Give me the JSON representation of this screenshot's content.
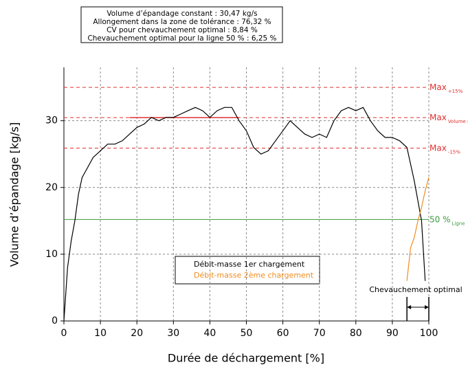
{
  "chart_data": {
    "type": "line",
    "info": [
      "Volume d’épandage constant : 30,47 kg/s",
      "Allongement dans la zone de tolérance : 76,32 %",
      "CV pour chevauchement optimal : 8,84 %",
      "Chevauchement optimal pour la ligne 50 % :  6,25 %"
    ],
    "x_label": "Durée de déchargement [%]",
    "y_label": "Volume d’épandage [kg/s]",
    "xlim": [
      0,
      100
    ],
    "ylim": [
      0,
      38
    ],
    "xticks": [
      0,
      10,
      20,
      30,
      40,
      50,
      60,
      70,
      80,
      90,
      100
    ],
    "yticks": [
      0,
      10,
      20,
      30
    ],
    "grid": true,
    "series": [
      {
        "name": "Débit-masse 1er chargement",
        "color": "#000000",
        "x": [
          0,
          1,
          2,
          3,
          4,
          5,
          6,
          8,
          10,
          12,
          14,
          16,
          18,
          20,
          22,
          24,
          26,
          28,
          30,
          32,
          34,
          36,
          38,
          40,
          42,
          44,
          46,
          48,
          50,
          52,
          54,
          56,
          58,
          60,
          62,
          64,
          66,
          68,
          70,
          72,
          74,
          76,
          78,
          80,
          82,
          84,
          86,
          88,
          90,
          92,
          94,
          96,
          98,
          99
        ],
        "values": [
          0,
          8,
          12,
          15,
          19,
          21.5,
          22.5,
          24.5,
          25.5,
          26.5,
          26.5,
          27,
          28,
          29,
          29.5,
          30.5,
          30,
          30.5,
          30.5,
          31,
          31.5,
          32,
          31.5,
          30.5,
          31.5,
          32,
          32,
          30,
          28.5,
          26,
          25,
          25.5,
          27,
          28.5,
          30,
          29,
          28,
          27.5,
          28,
          27.5,
          30,
          31.5,
          32,
          31.5,
          32,
          30,
          28.5,
          27.5,
          27.5,
          27,
          26,
          21,
          15,
          6
        ]
      },
      {
        "name": "Débit-masse 2ème chargement",
        "color": "#f08c1e",
        "x": [
          94,
          95,
          96,
          97,
          98,
          99,
          100
        ],
        "values": [
          6,
          11,
          12.5,
          15,
          17,
          19.5,
          21.5
        ]
      }
    ],
    "reference_lines": [
      {
        "value": 35,
        "label": "Max",
        "sub": "+15%",
        "color": "#e03030",
        "dash": true
      },
      {
        "value": 30.47,
        "label": "Max",
        "sub": "Volume d’épand",
        "color": "#e03030",
        "dash": true
      },
      {
        "value": 25.9,
        "label": "Max",
        "sub": "-15%",
        "color": "#e03030",
        "dash": true
      },
      {
        "value": 15.2,
        "label": "50 %",
        "sub": "Ligne",
        "color": "#3a9a3a",
        "dash": false
      }
    ],
    "segment": {
      "x": [
        18,
        48
      ],
      "value": 30.47,
      "color": "#e03030"
    },
    "overlap": {
      "label": "Chevauchement optimal",
      "x": [
        94,
        100
      ]
    }
  }
}
